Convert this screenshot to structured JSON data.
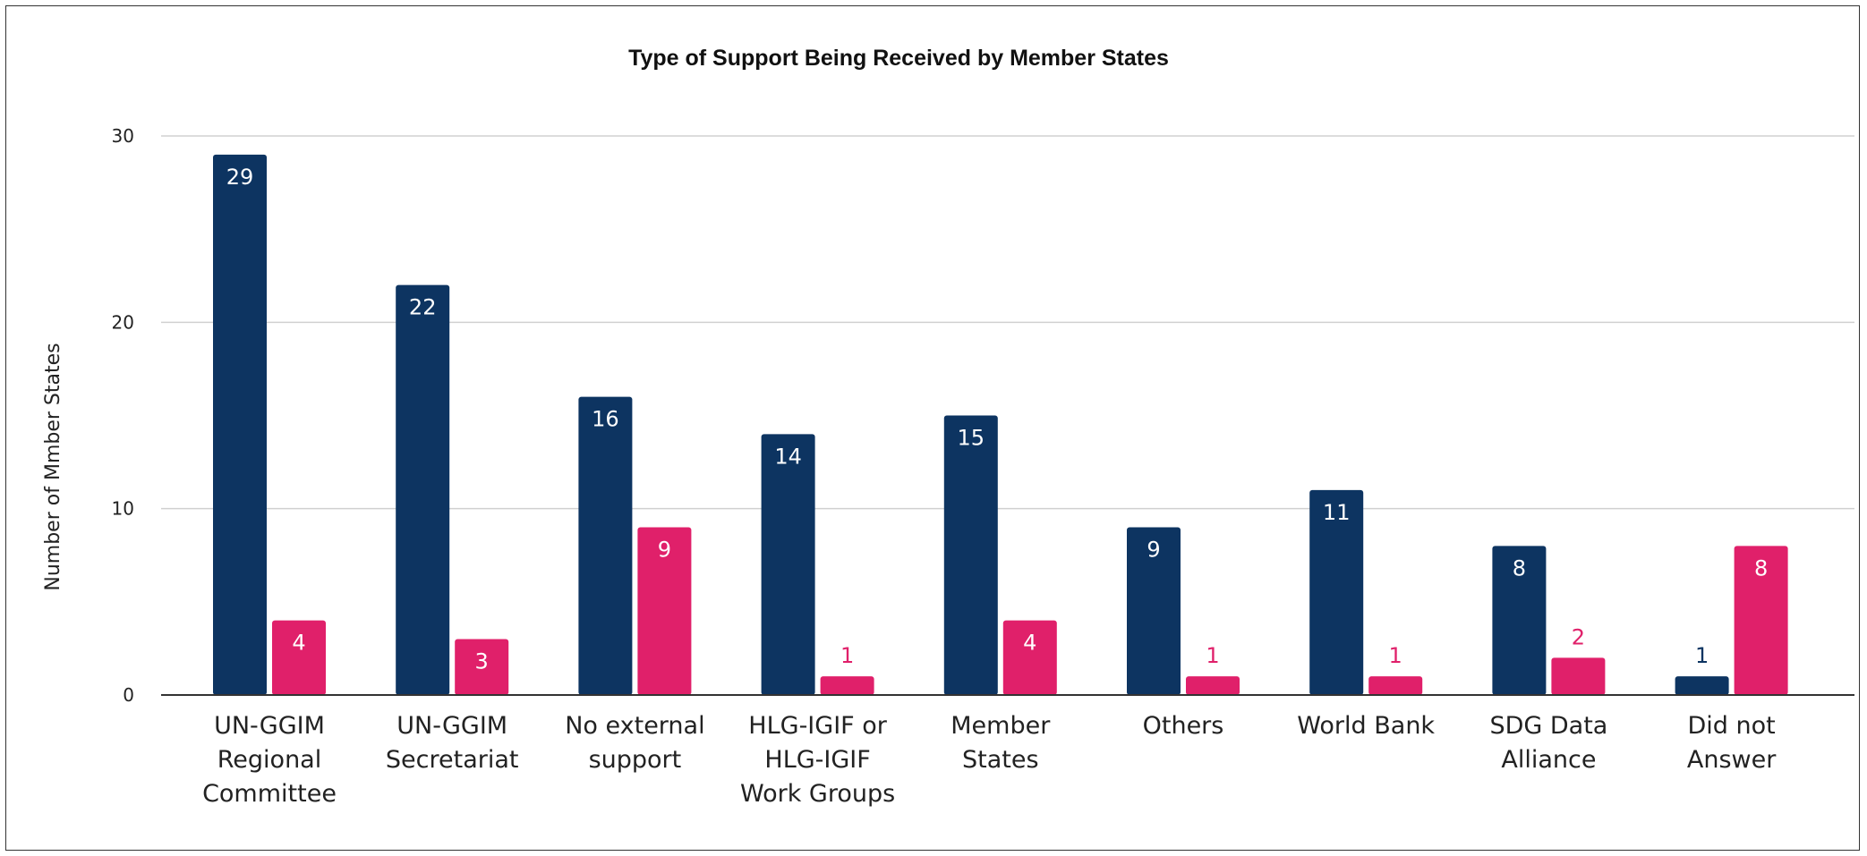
{
  "chart_data": {
    "type": "bar",
    "title": "Type of Support Being Received by Member States",
    "xlabel": "",
    "ylabel": "Number of Mmber States",
    "ylim": [
      0,
      30
    ],
    "yticks": [
      0,
      10,
      20,
      30
    ],
    "grid": true,
    "categories": [
      [
        "UN-GGIM",
        "Regional",
        "Committee"
      ],
      [
        "UN-GGIM",
        "Secretariat"
      ],
      [
        "No external",
        "support"
      ],
      [
        "HLG-IGIF or",
        "HLG-IGIF",
        "Work Groups"
      ],
      [
        "Member",
        "States"
      ],
      [
        "Others"
      ],
      [
        "World Bank"
      ],
      [
        "SDG Data",
        "Alliance"
      ],
      [
        "Did not",
        "Answer"
      ]
    ],
    "series": [
      {
        "values": [
          29,
          22,
          16,
          14,
          15,
          9,
          11,
          8,
          1
        ],
        "color": "#0d3461"
      },
      {
        "values": [
          4,
          3,
          9,
          1,
          4,
          1,
          1,
          2,
          8
        ],
        "color": "#e0206a"
      }
    ]
  }
}
